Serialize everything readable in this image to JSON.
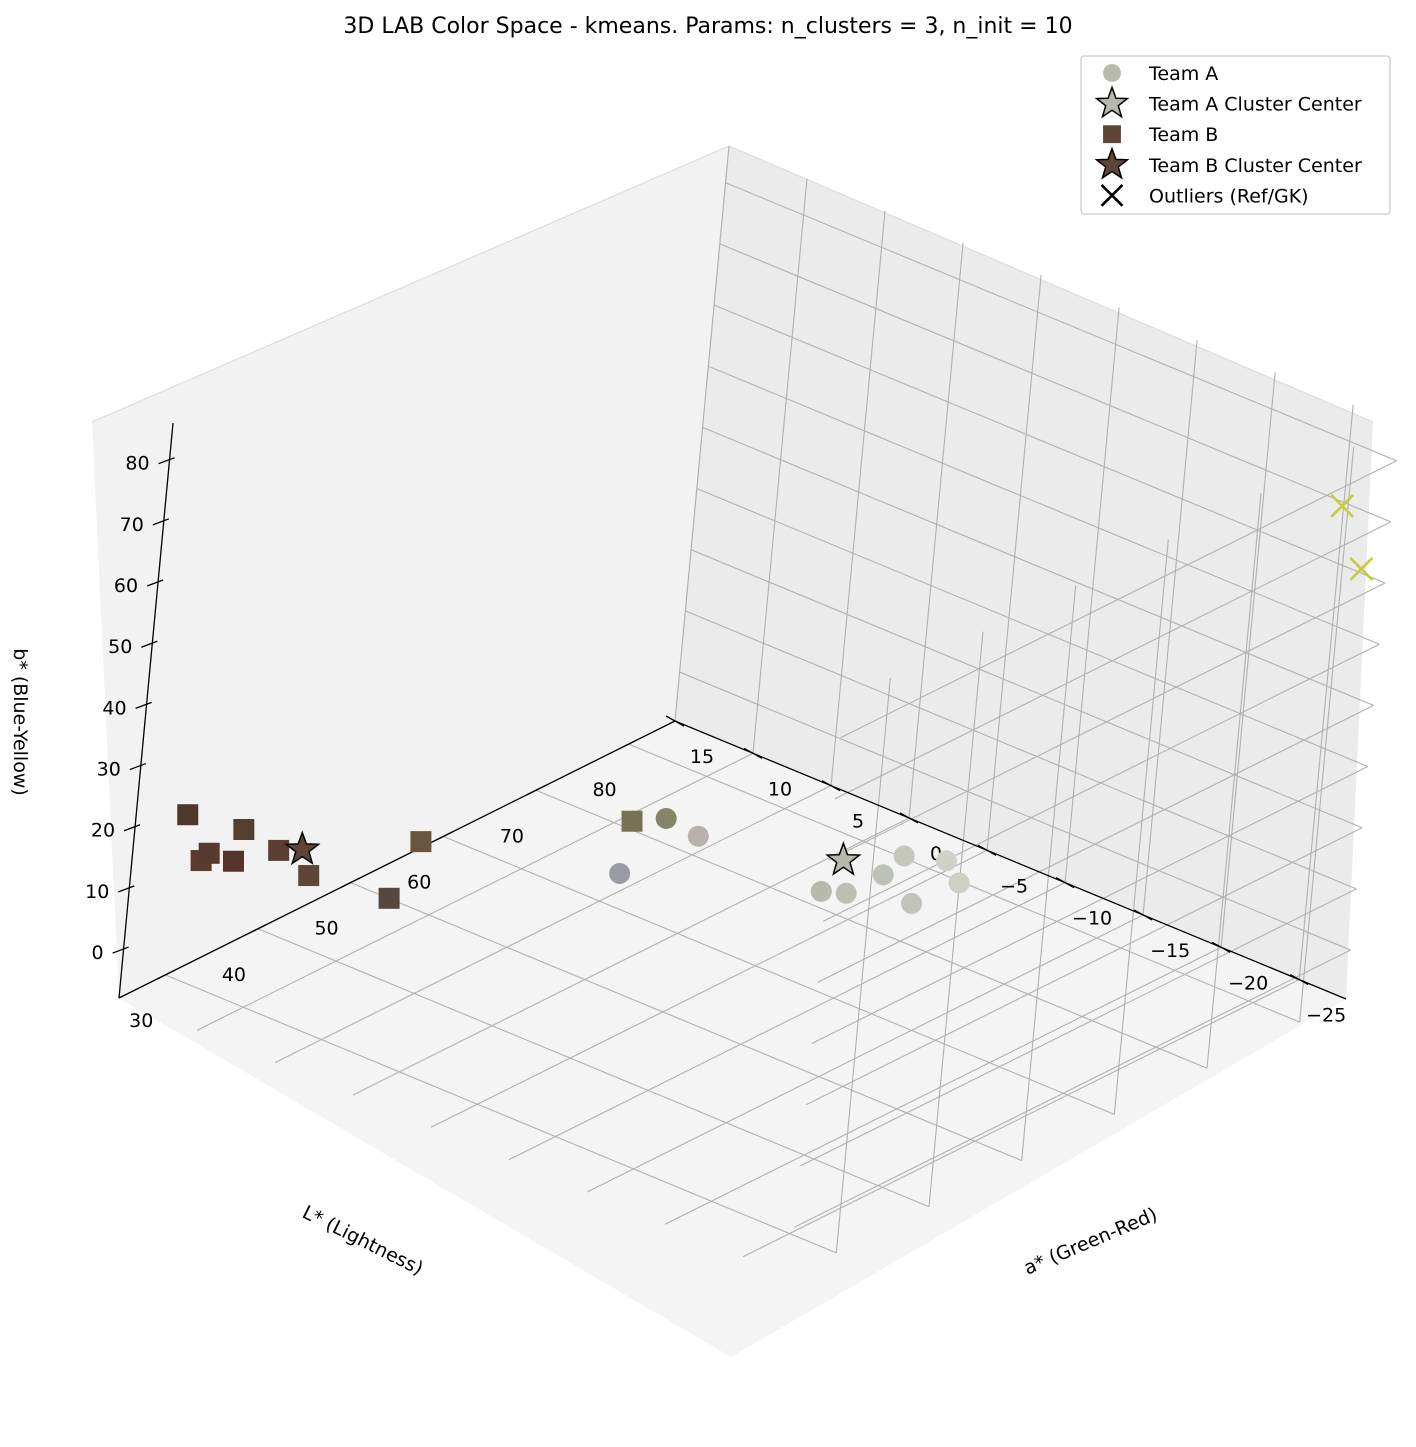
{
  "chart_data": {
    "type": "scatter3d",
    "title": "3D LAB Color Space - kmeans. Params: n_clusters = 3, n_init = 10",
    "axes": {
      "x": {
        "label": "L* (Lightness)",
        "ticks": [
          "30",
          "40",
          "50",
          "60",
          "70",
          "80"
        ]
      },
      "y": {
        "label": "a* (Green-Red)",
        "ticks": [
          "−25",
          "−20",
          "−15",
          "−10",
          "−5",
          "0",
          "5",
          "10",
          "15"
        ]
      },
      "z": {
        "label": "b* (Blue-Yellow)",
        "ticks": [
          "0",
          "10",
          "20",
          "30",
          "40",
          "50",
          "60",
          "70",
          "80"
        ]
      }
    },
    "grid": true,
    "legend_position": "top-right",
    "legend": [
      {
        "label": "Team A",
        "marker": "circle",
        "color": "#b8b9ad"
      },
      {
        "label": "Team A Cluster Center",
        "marker": "star",
        "color": "#b8b9ad"
      },
      {
        "label": "Team B",
        "marker": "square",
        "color": "#5e4538"
      },
      {
        "label": "Team B Cluster Center",
        "marker": "star",
        "color": "#5e4538"
      },
      {
        "label": "Outliers (Ref/GK)",
        "marker": "x",
        "color": "#000000"
      }
    ],
    "series": [
      {
        "name": "Team A",
        "marker": "circle",
        "points": [
          {
            "L": 75,
            "a": -8,
            "b": 1,
            "color": "#cfd0c8"
          },
          {
            "L": 73,
            "a": -10,
            "b": 1,
            "color": "#ced0c6"
          },
          {
            "L": 72,
            "a": -7,
            "b": 3,
            "color": "#c6c8bd"
          },
          {
            "L": 68,
            "a": -8,
            "b": 4,
            "color": "#bec1b6"
          },
          {
            "L": 66,
            "a": -11,
            "b": 4,
            "color": "#c1c4b9"
          },
          {
            "L": 64,
            "a": -8,
            "b": 4,
            "color": "#bdbfb3"
          },
          {
            "L": 63,
            "a": -7,
            "b": 4,
            "color": "#b8b9ad"
          },
          {
            "L": 65,
            "a": 2,
            "b": 2,
            "color": "#b9b1ad"
          },
          {
            "L": 62,
            "a": 5,
            "b": -5,
            "color": "#9b9ca3"
          },
          {
            "L": 52,
            "a": -3,
            "b": 20,
            "color": "#868468"
          }
        ]
      },
      {
        "name": "Team A Cluster Center",
        "marker": "star",
        "points": [
          {
            "L": 67,
            "a": -6,
            "b": 5,
            "color": "#b8b9ad"
          }
        ]
      },
      {
        "name": "Team B",
        "marker": "square",
        "points": [
          {
            "L": 31,
            "a": 12,
            "b": 13,
            "color": "#55342c"
          },
          {
            "L": 31,
            "a": 14,
            "b": 11,
            "color": "#5b3a30"
          },
          {
            "L": 30,
            "a": 13,
            "b": 14,
            "color": "#563a30"
          },
          {
            "L": 30,
            "a": 11,
            "b": 20,
            "color": "#54402e"
          },
          {
            "L": 29,
            "a": 14,
            "b": 20,
            "color": "#4d3829"
          },
          {
            "L": 36,
            "a": 12,
            "b": 11,
            "color": "#5c3d33"
          },
          {
            "L": 36,
            "a": 10,
            "b": 9,
            "color": "#5f4538"
          },
          {
            "L": 38,
            "a": 6,
            "b": 8,
            "color": "#57483f"
          },
          {
            "L": 41,
            "a": 6,
            "b": 15,
            "color": "#6c5540"
          },
          {
            "L": 50,
            "a": -2,
            "b": 20,
            "color": "#777155"
          }
        ]
      },
      {
        "name": "Team B Cluster Center",
        "marker": "star",
        "points": [
          {
            "L": 35,
            "a": 10,
            "b": 14,
            "color": "#5e4538"
          }
        ]
      },
      {
        "name": "Outliers (Ref/GK)",
        "marker": "x",
        "points": [
          {
            "L": 84,
            "a": -27,
            "b": 62,
            "color": "#c6cc3a"
          },
          {
            "L": 83,
            "a": -26,
            "b": 72,
            "color": "#c6cc3a"
          }
        ]
      }
    ]
  }
}
